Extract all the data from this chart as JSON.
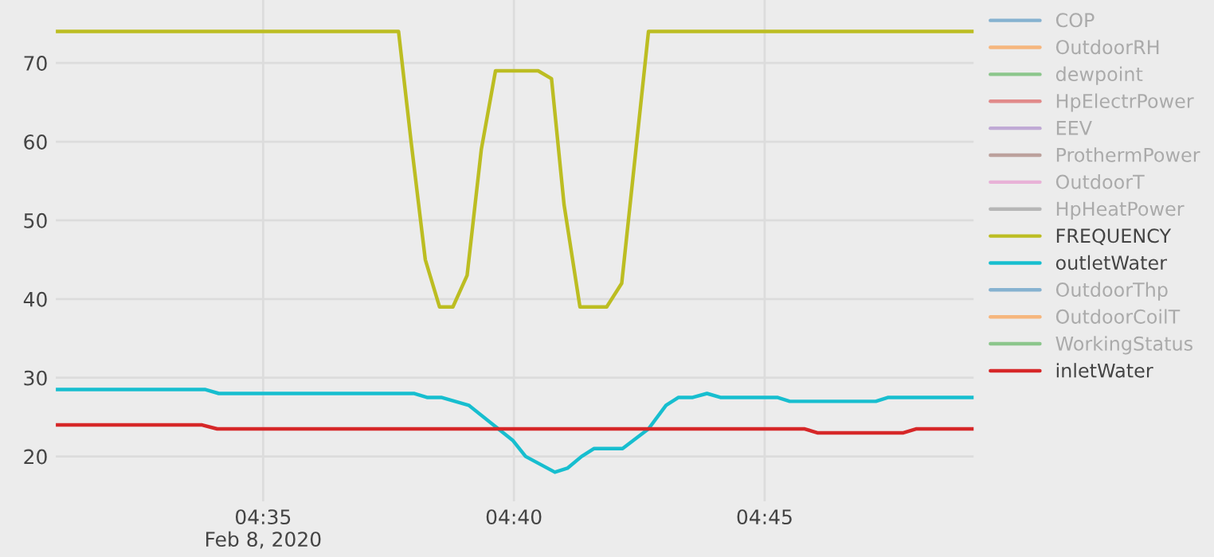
{
  "chart_data": {
    "type": "line",
    "legend": "top right",
    "grid": true,
    "marker": "none",
    "line_style": "solid",
    "xlim": [
      "2020-02-08T04:30:52",
      "2020-02-08T04:49:10"
    ],
    "xticks": [
      {
        "value": "2020-02-08T04:35",
        "label": "04:35\nFeb 8, 2020"
      },
      {
        "value": "2020-02-08T04:40",
        "label": "04:40"
      },
      {
        "value": "2020-02-08T04:45",
        "label": "04:45"
      }
    ],
    "ylim": [
      14.3,
      78
    ],
    "yticks": [
      20,
      30,
      40,
      50,
      60,
      70
    ],
    "series": [
      {
        "name": "COP",
        "color": "#1f77b4"
      },
      {
        "name": "OutdoorRH",
        "color": "#ff7f0e"
      },
      {
        "name": "dewpoint",
        "color": "#2ca02c"
      },
      {
        "name": "HpElectrPower",
        "color": "#d62728"
      },
      {
        "name": "EEV",
        "color": "#9467bd"
      },
      {
        "name": "ProthermPower",
        "color": "#8c564b"
      },
      {
        "name": "OutdoorT",
        "color": "#e377c2"
      },
      {
        "name": "HpHeatPower",
        "color": "#7f7f7f"
      },
      {
        "name": "FREQUENCY",
        "color": "#bcbd22",
        "x": [
          "2020-02-08T04:30:52",
          "2020-02-08T04:37:42",
          "2020-02-08T04:37:57",
          "2020-02-08T04:38:14",
          "2020-02-08T04:38:31",
          "2020-02-08T04:38:47",
          "2020-02-08T04:39:04",
          "2020-02-08T04:39:21",
          "2020-02-08T04:39:38",
          "2020-02-08T04:40:29",
          "2020-02-08T04:40:45",
          "2020-02-08T04:41:00",
          "2020-02-08T04:41:19",
          "2020-02-08T04:41:51",
          "2020-02-08T04:42:09",
          "2020-02-08T04:42:41",
          "2020-02-08T04:49:10"
        ],
        "values": [
          74,
          74,
          60,
          45,
          39,
          39,
          43,
          59,
          69,
          69,
          68,
          52,
          39,
          39,
          42,
          74,
          74
        ]
      },
      {
        "name": "outletWater",
        "color": "#17becf",
        "x": [
          "2020-02-08T04:30:52",
          "2020-02-08T04:33:51",
          "2020-02-08T04:34:07",
          "2020-02-08T04:38:01",
          "2020-02-08T04:38:16",
          "2020-02-08T04:38:33",
          "2020-02-08T04:39:06",
          "2020-02-08T04:39:59",
          "2020-02-08T04:40:14",
          "2020-02-08T04:40:49",
          "2020-02-08T04:41:04",
          "2020-02-08T04:41:21",
          "2020-02-08T04:41:36",
          "2020-02-08T04:42:10",
          "2020-02-08T04:42:41",
          "2020-02-08T04:43:02",
          "2020-02-08T04:43:17",
          "2020-02-08T04:43:34",
          "2020-02-08T04:43:51",
          "2020-02-08T04:44:07",
          "2020-02-08T04:45:15",
          "2020-02-08T04:45:30",
          "2020-02-08T04:47:13",
          "2020-02-08T04:47:28",
          "2020-02-08T04:49:10"
        ],
        "values": [
          28.5,
          28.5,
          28,
          28,
          27.5,
          27.5,
          26.5,
          22,
          20,
          18,
          18.5,
          20,
          21,
          21,
          23.5,
          26.5,
          27.5,
          27.5,
          28,
          27.5,
          27.5,
          27,
          27,
          27.5,
          27.5
        ]
      },
      {
        "name": "OutdoorThp",
        "color": "#1f77b4"
      },
      {
        "name": "OutdoorCoilT",
        "color": "#ff7f0e"
      },
      {
        "name": "WorkingStatus",
        "color": "#2ca02c"
      },
      {
        "name": "inletWater",
        "color": "#d62728",
        "x": [
          "2020-02-08T04:30:52",
          "2020-02-08T04:33:47",
          "2020-02-08T04:34:05",
          "2020-02-08T04:45:48",
          "2020-02-08T04:46:03",
          "2020-02-08T04:47:46",
          "2020-02-08T04:48:01",
          "2020-02-08T04:49:10"
        ],
        "values": [
          24,
          24,
          23.5,
          23.5,
          23,
          23,
          23.5,
          23.5
        ]
      }
    ]
  }
}
